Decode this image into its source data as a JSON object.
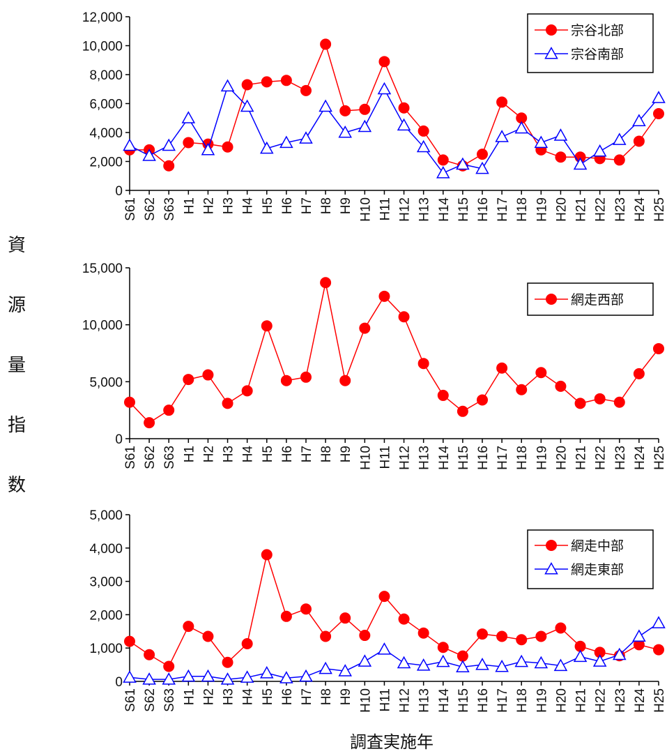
{
  "y_axis_label": "資源量指数",
  "x_axis_label": "調査実施年",
  "colors": {
    "red": "#ff0000",
    "blue": "#0000ff",
    "axis": "#000000"
  },
  "chart_data": [
    {
      "type": "line",
      "categories": [
        "S61",
        "S62",
        "S63",
        "H1",
        "H2",
        "H3",
        "H4",
        "H5",
        "H6",
        "H7",
        "H8",
        "H9",
        "H10",
        "H11",
        "H12",
        "H13",
        "H14",
        "H15",
        "H16",
        "H17",
        "H18",
        "H19",
        "H20",
        "H21",
        "H22",
        "H23",
        "H24",
        "H25"
      ],
      "ylim": [
        0,
        12000
      ],
      "yticks": [
        0,
        2000,
        4000,
        6000,
        8000,
        10000,
        12000
      ],
      "ytick_labels": [
        "0",
        "2,000",
        "4,000",
        "6,000",
        "8,000",
        "10,000",
        "12,000"
      ],
      "legend_position": "top-right",
      "series": [
        {
          "name": "宗谷北部",
          "marker": "circle",
          "color": "#ff0000",
          "values": [
            2800,
            2800,
            1700,
            3300,
            3200,
            3000,
            7300,
            7500,
            7600,
            6900,
            10100,
            5500,
            5600,
            8900,
            5700,
            4100,
            2100,
            1700,
            2500,
            6100,
            5000,
            2800,
            2300,
            2300,
            2200,
            2100,
            3400,
            5300
          ]
        },
        {
          "name": "宗谷南部",
          "marker": "triangle",
          "color": "#0000ff",
          "values": [
            3100,
            2400,
            3100,
            5000,
            2800,
            7200,
            5800,
            2900,
            3300,
            3600,
            5800,
            4000,
            4400,
            7000,
            4500,
            3000,
            1200,
            1800,
            1500,
            3700,
            4300,
            3300,
            3800,
            1800,
            2700,
            3500,
            4800,
            6400
          ]
        }
      ]
    },
    {
      "type": "line",
      "categories": [
        "S61",
        "S62",
        "S63",
        "H1",
        "H2",
        "H3",
        "H4",
        "H5",
        "H6",
        "H7",
        "H8",
        "H9",
        "H10",
        "H11",
        "H12",
        "H13",
        "H14",
        "H15",
        "H16",
        "H17",
        "H18",
        "H19",
        "H20",
        "H21",
        "H22",
        "H23",
        "H24",
        "H25"
      ],
      "ylim": [
        0,
        15000
      ],
      "yticks": [
        0,
        5000,
        10000,
        15000
      ],
      "ytick_labels": [
        "0",
        "5,000",
        "10,000",
        "15,000"
      ],
      "legend_position": "top-right",
      "series": [
        {
          "name": "網走西部",
          "marker": "circle",
          "color": "#ff0000",
          "values": [
            3200,
            1400,
            2500,
            5200,
            5600,
            3100,
            4200,
            9900,
            5100,
            5400,
            13700,
            5100,
            9700,
            12500,
            10700,
            6600,
            3800,
            2400,
            3400,
            6200,
            4300,
            5800,
            4600,
            3100,
            3500,
            3200,
            5700,
            7900
          ]
        }
      ]
    },
    {
      "type": "line",
      "categories": [
        "S61",
        "S62",
        "S63",
        "H1",
        "H2",
        "H3",
        "H4",
        "H5",
        "H6",
        "H7",
        "H8",
        "H9",
        "H10",
        "H11",
        "H12",
        "H13",
        "H14",
        "H15",
        "H16",
        "H17",
        "H18",
        "H19",
        "H20",
        "H21",
        "H22",
        "H23",
        "H24",
        "H25"
      ],
      "ylim": [
        0,
        5000
      ],
      "yticks": [
        0,
        1000,
        2000,
        3000,
        4000,
        5000
      ],
      "ytick_labels": [
        "0",
        "1,000",
        "2,000",
        "3,000",
        "4,000",
        "5,000"
      ],
      "legend_position": "top-right",
      "series": [
        {
          "name": "網走中部",
          "marker": "circle",
          "color": "#ff0000",
          "values": [
            1200,
            800,
            450,
            1650,
            1350,
            570,
            1130,
            3800,
            1950,
            2170,
            1350,
            1900,
            1380,
            2550,
            1870,
            1450,
            1020,
            760,
            1420,
            1350,
            1250,
            1350,
            1600,
            1050,
            870,
            770,
            1100,
            950
          ]
        },
        {
          "name": "網走東部",
          "marker": "triangle",
          "color": "#0000ff",
          "values": [
            120,
            60,
            60,
            150,
            150,
            60,
            120,
            250,
            100,
            150,
            380,
            310,
            600,
            960,
            550,
            480,
            590,
            430,
            500,
            440,
            590,
            550,
            470,
            740,
            600,
            800,
            1350,
            1750
          ]
        }
      ]
    }
  ]
}
